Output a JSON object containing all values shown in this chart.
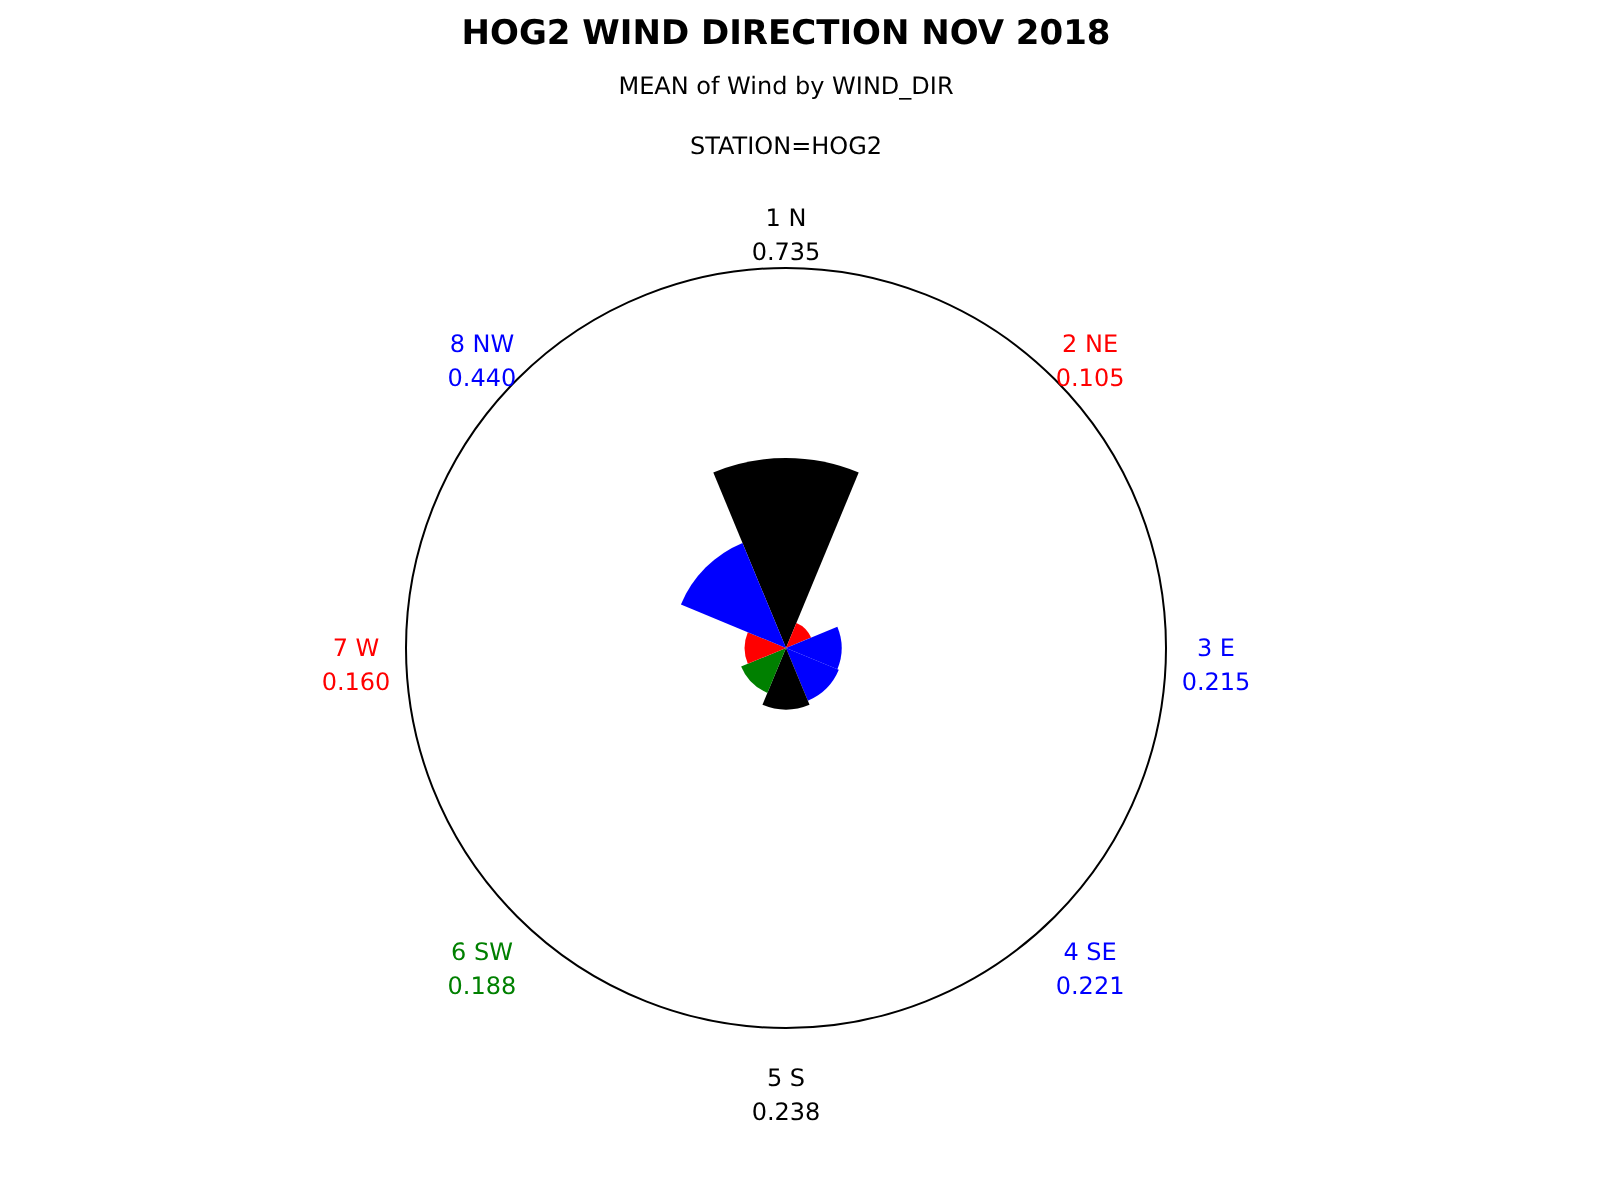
{
  "chart_data": {
    "type": "other",
    "title": "HOG2 WIND DIRECTION NOV 2018",
    "subtitle": "MEAN of Wind by WIND_DIR",
    "annotations": [
      "STATION=HOG2"
    ],
    "categories": [
      "1 N",
      "2 NE",
      "3 E",
      "4 SE",
      "5 S",
      "6 SW",
      "7 W",
      "8 NW"
    ],
    "values": [
      0.735,
      0.105,
      0.215,
      0.221,
      0.238,
      0.188,
      0.16,
      0.44
    ],
    "colors": [
      "#000000",
      "#ff0000",
      "#0000ff",
      "#0000ff",
      "#000000",
      "#008000",
      "#ff0000",
      "#0000ff"
    ],
    "value_labels": [
      "0.735",
      "0.105",
      "0.215",
      "0.221",
      "0.238",
      "0.188",
      "0.160",
      "0.440"
    ]
  }
}
